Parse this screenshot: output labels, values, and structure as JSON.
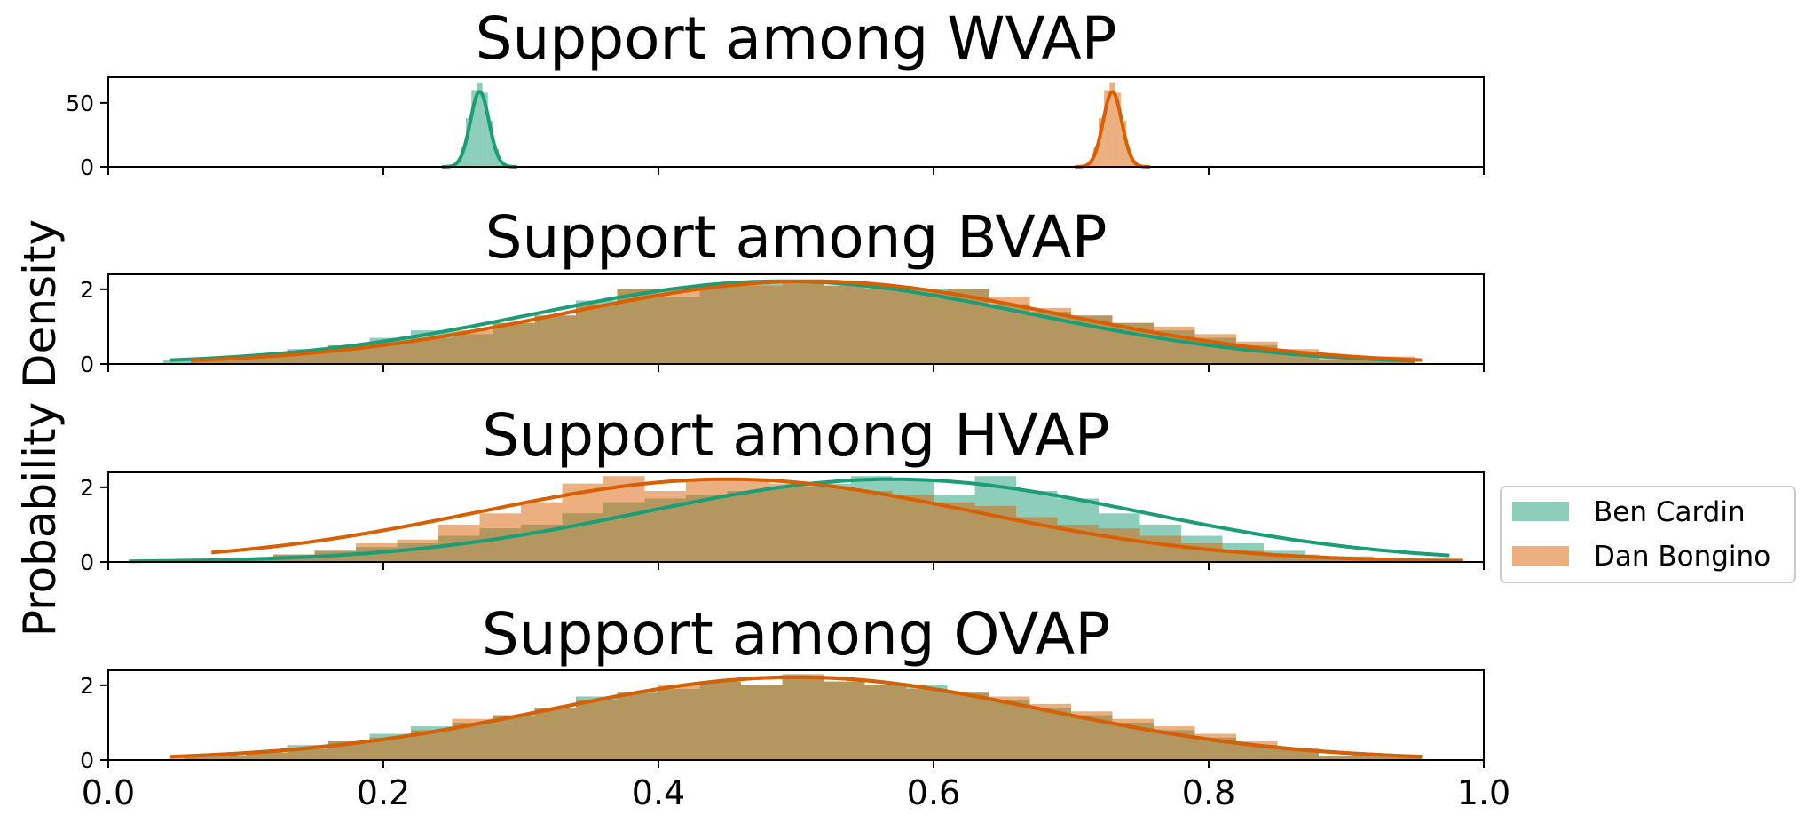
{
  "figure": {
    "ylabel": "Probability Density",
    "xticks": [
      "0.0",
      "0.2",
      "0.4",
      "0.6",
      "0.8",
      "1.0"
    ],
    "legend": [
      {
        "name": "Ben Cardin",
        "color": "#1b9e77"
      },
      {
        "name": "Dan Bongino",
        "color": "#d95f02"
      }
    ]
  },
  "chart_data": [
    {
      "type": "area",
      "title": "Support among WVAP",
      "xlim": [
        0.0,
        1.0
      ],
      "ylim": [
        0,
        70
      ],
      "yticks": [
        0,
        50
      ],
      "grid": false,
      "series": [
        {
          "name": "Ben Cardin",
          "color": "#1b9e77",
          "mean": 0.27,
          "sd": 0.0068,
          "hist": [
            [
              0.252,
              0.256,
              4
            ],
            [
              0.256,
              0.26,
              15
            ],
            [
              0.26,
              0.264,
              38
            ],
            [
              0.264,
              0.268,
              60
            ],
            [
              0.268,
              0.272,
              66
            ],
            [
              0.272,
              0.276,
              58
            ],
            [
              0.276,
              0.28,
              36
            ],
            [
              0.28,
              0.284,
              14
            ],
            [
              0.284,
              0.288,
              4
            ]
          ]
        },
        {
          "name": "Dan Bongino",
          "color": "#d95f02",
          "mean": 0.73,
          "sd": 0.0068,
          "hist": [
            [
              0.712,
              0.716,
              4
            ],
            [
              0.716,
              0.72,
              15
            ],
            [
              0.72,
              0.724,
              38
            ],
            [
              0.724,
              0.728,
              60
            ],
            [
              0.728,
              0.732,
              66
            ],
            [
              0.732,
              0.736,
              58
            ],
            [
              0.736,
              0.74,
              36
            ],
            [
              0.74,
              0.744,
              14
            ],
            [
              0.744,
              0.748,
              4
            ]
          ]
        }
      ]
    },
    {
      "type": "area",
      "title": "Support among BVAP",
      "xlim": [
        0.0,
        1.0
      ],
      "ylim": [
        0,
        2.4
      ],
      "yticks": [
        0,
        2
      ],
      "grid": false,
      "series": [
        {
          "name": "Ben Cardin",
          "color": "#1b9e77",
          "mean": 0.49,
          "sd": 0.18,
          "range": [
            0.045,
            0.95
          ],
          "hist": [
            [
              0.04,
              0.1,
              0.1
            ],
            [
              0.1,
              0.13,
              0.2
            ],
            [
              0.13,
              0.16,
              0.4
            ],
            [
              0.16,
              0.19,
              0.5
            ],
            [
              0.19,
              0.22,
              0.7
            ],
            [
              0.22,
              0.25,
              0.9
            ],
            [
              0.25,
              0.28,
              0.8
            ],
            [
              0.28,
              0.31,
              1.1
            ],
            [
              0.31,
              0.34,
              1.3
            ],
            [
              0.34,
              0.37,
              1.7
            ],
            [
              0.37,
              0.4,
              2.0
            ],
            [
              0.4,
              0.43,
              1.8
            ],
            [
              0.43,
              0.46,
              2.1
            ],
            [
              0.46,
              0.49,
              2.2
            ],
            [
              0.49,
              0.52,
              2.2
            ],
            [
              0.52,
              0.55,
              2.1
            ],
            [
              0.55,
              0.58,
              2.1
            ],
            [
              0.58,
              0.61,
              2.0
            ],
            [
              0.61,
              0.64,
              2.0
            ],
            [
              0.64,
              0.67,
              1.6
            ],
            [
              0.67,
              0.7,
              1.4
            ],
            [
              0.7,
              0.73,
              1.3
            ],
            [
              0.73,
              0.76,
              1.1
            ],
            [
              0.76,
              0.79,
              0.9
            ],
            [
              0.79,
              0.82,
              0.7
            ],
            [
              0.82,
              0.85,
              0.5
            ],
            [
              0.85,
              0.88,
              0.3
            ],
            [
              0.88,
              0.95,
              0.1
            ]
          ]
        },
        {
          "name": "Dan Bongino",
          "color": "#d95f02",
          "mean": 0.51,
          "sd": 0.18,
          "range": [
            0.06,
            0.955
          ],
          "hist": [
            [
              0.06,
              0.1,
              0.1
            ],
            [
              0.1,
              0.13,
              0.2
            ],
            [
              0.13,
              0.16,
              0.3
            ],
            [
              0.16,
              0.19,
              0.5
            ],
            [
              0.19,
              0.22,
              0.6
            ],
            [
              0.22,
              0.25,
              0.7
            ],
            [
              0.25,
              0.28,
              0.9
            ],
            [
              0.28,
              0.31,
              1.1
            ],
            [
              0.31,
              0.34,
              1.3
            ],
            [
              0.34,
              0.37,
              1.6
            ],
            [
              0.37,
              0.4,
              2.0
            ],
            [
              0.4,
              0.43,
              2.0
            ],
            [
              0.43,
              0.46,
              2.1
            ],
            [
              0.46,
              0.49,
              2.1
            ],
            [
              0.49,
              0.52,
              2.2
            ],
            [
              0.52,
              0.55,
              2.1
            ],
            [
              0.55,
              0.58,
              2.0
            ],
            [
              0.58,
              0.61,
              1.9
            ],
            [
              0.61,
              0.64,
              2.0
            ],
            [
              0.64,
              0.67,
              1.8
            ],
            [
              0.67,
              0.7,
              1.5
            ],
            [
              0.7,
              0.73,
              1.3
            ],
            [
              0.73,
              0.76,
              1.1
            ],
            [
              0.76,
              0.79,
              1.0
            ],
            [
              0.79,
              0.82,
              0.8
            ],
            [
              0.82,
              0.85,
              0.6
            ],
            [
              0.85,
              0.88,
              0.4
            ],
            [
              0.88,
              0.95,
              0.2
            ]
          ]
        }
      ]
    },
    {
      "type": "area",
      "title": "Support among HVAP",
      "xlim": [
        0.0,
        1.0
      ],
      "ylim": [
        0,
        2.4
      ],
      "yticks": [
        0,
        2
      ],
      "grid": false,
      "series": [
        {
          "name": "Ben Cardin",
          "color": "#1b9e77",
          "mean": 0.57,
          "sd": 0.18,
          "range": [
            0.015,
            0.975
          ],
          "hist": [
            [
              0.015,
              0.08,
              0.05
            ],
            [
              0.08,
              0.12,
              0.1
            ],
            [
              0.12,
              0.15,
              0.2
            ],
            [
              0.15,
              0.18,
              0.3
            ],
            [
              0.18,
              0.21,
              0.4
            ],
            [
              0.21,
              0.24,
              0.5
            ],
            [
              0.24,
              0.27,
              0.7
            ],
            [
              0.27,
              0.3,
              0.9
            ],
            [
              0.3,
              0.33,
              1.0
            ],
            [
              0.33,
              0.36,
              1.3
            ],
            [
              0.36,
              0.39,
              1.6
            ],
            [
              0.39,
              0.42,
              1.7
            ],
            [
              0.42,
              0.45,
              1.8
            ],
            [
              0.45,
              0.48,
              1.9
            ],
            [
              0.48,
              0.51,
              2.0
            ],
            [
              0.51,
              0.54,
              2.1
            ],
            [
              0.54,
              0.57,
              2.3
            ],
            [
              0.57,
              0.6,
              2.2
            ],
            [
              0.6,
              0.63,
              1.8
            ],
            [
              0.63,
              0.66,
              2.3
            ],
            [
              0.66,
              0.69,
              1.9
            ],
            [
              0.69,
              0.72,
              1.7
            ],
            [
              0.72,
              0.75,
              1.3
            ],
            [
              0.75,
              0.78,
              1.0
            ],
            [
              0.78,
              0.81,
              0.7
            ],
            [
              0.81,
              0.84,
              0.5
            ],
            [
              0.84,
              0.87,
              0.3
            ],
            [
              0.87,
              0.92,
              0.15
            ],
            [
              0.92,
              0.975,
              0.05
            ]
          ]
        },
        {
          "name": "Dan Bongino",
          "color": "#d95f02",
          "mean": 0.45,
          "sd": 0.18,
          "range": [
            0.075,
            0.985
          ],
          "hist": [
            [
              0.075,
              0.12,
              0.1
            ],
            [
              0.12,
              0.15,
              0.2
            ],
            [
              0.15,
              0.18,
              0.3
            ],
            [
              0.18,
              0.21,
              0.5
            ],
            [
              0.21,
              0.24,
              0.6
            ],
            [
              0.24,
              0.27,
              1.0
            ],
            [
              0.27,
              0.3,
              1.3
            ],
            [
              0.3,
              0.33,
              1.6
            ],
            [
              0.33,
              0.36,
              2.1
            ],
            [
              0.36,
              0.39,
              2.3
            ],
            [
              0.39,
              0.42,
              1.9
            ],
            [
              0.42,
              0.45,
              2.2
            ],
            [
              0.45,
              0.48,
              2.2
            ],
            [
              0.48,
              0.51,
              2.1
            ],
            [
              0.51,
              0.54,
              2.0
            ],
            [
              0.54,
              0.57,
              1.9
            ],
            [
              0.57,
              0.6,
              1.8
            ],
            [
              0.6,
              0.63,
              1.6
            ],
            [
              0.63,
              0.66,
              1.5
            ],
            [
              0.66,
              0.69,
              1.2
            ],
            [
              0.69,
              0.72,
              1.0
            ],
            [
              0.72,
              0.75,
              0.9
            ],
            [
              0.75,
              0.78,
              0.7
            ],
            [
              0.78,
              0.81,
              0.5
            ],
            [
              0.81,
              0.84,
              0.3
            ],
            [
              0.84,
              0.88,
              0.2
            ],
            [
              0.88,
              0.985,
              0.1
            ]
          ]
        }
      ]
    },
    {
      "type": "area",
      "title": "Support among OVAP",
      "xlim": [
        0.0,
        1.0
      ],
      "ylim": [
        0,
        2.4
      ],
      "yticks": [
        0,
        2
      ],
      "grid": false,
      "series": [
        {
          "name": "Ben Cardin",
          "color": "#1b9e77",
          "mean": 0.5,
          "sd": 0.18,
          "range": [
            0.055,
            0.955
          ],
          "hist": [
            [
              0.055,
              0.1,
              0.1
            ],
            [
              0.1,
              0.13,
              0.2
            ],
            [
              0.13,
              0.16,
              0.4
            ],
            [
              0.16,
              0.19,
              0.5
            ],
            [
              0.19,
              0.22,
              0.7
            ],
            [
              0.22,
              0.25,
              0.9
            ],
            [
              0.25,
              0.28,
              1.0
            ],
            [
              0.28,
              0.31,
              1.2
            ],
            [
              0.31,
              0.34,
              1.4
            ],
            [
              0.34,
              0.37,
              1.7
            ],
            [
              0.37,
              0.4,
              1.8
            ],
            [
              0.4,
              0.43,
              1.9
            ],
            [
              0.43,
              0.46,
              2.1
            ],
            [
              0.46,
              0.49,
              2.0
            ],
            [
              0.49,
              0.52,
              2.2
            ],
            [
              0.52,
              0.55,
              2.1
            ],
            [
              0.55,
              0.58,
              2.0
            ],
            [
              0.58,
              0.61,
              2.0
            ],
            [
              0.61,
              0.64,
              1.8
            ],
            [
              0.64,
              0.67,
              1.6
            ],
            [
              0.67,
              0.7,
              1.4
            ],
            [
              0.7,
              0.73,
              1.2
            ],
            [
              0.73,
              0.76,
              1.0
            ],
            [
              0.76,
              0.79,
              0.8
            ],
            [
              0.79,
              0.82,
              0.6
            ],
            [
              0.82,
              0.85,
              0.4
            ],
            [
              0.85,
              0.88,
              0.3
            ],
            [
              0.88,
              0.955,
              0.1
            ]
          ]
        },
        {
          "name": "Dan Bongino",
          "color": "#d95f02",
          "mean": 0.5,
          "sd": 0.18,
          "range": [
            0.045,
            0.955
          ],
          "hist": [
            [
              0.045,
              0.1,
              0.1
            ],
            [
              0.1,
              0.13,
              0.2
            ],
            [
              0.13,
              0.16,
              0.3
            ],
            [
              0.16,
              0.19,
              0.5
            ],
            [
              0.19,
              0.22,
              0.6
            ],
            [
              0.22,
              0.25,
              0.8
            ],
            [
              0.25,
              0.28,
              1.1
            ],
            [
              0.28,
              0.31,
              1.2
            ],
            [
              0.31,
              0.34,
              1.4
            ],
            [
              0.34,
              0.37,
              1.6
            ],
            [
              0.37,
              0.4,
              1.8
            ],
            [
              0.4,
              0.43,
              2.0
            ],
            [
              0.43,
              0.46,
              2.1
            ],
            [
              0.46,
              0.49,
              2.0
            ],
            [
              0.49,
              0.52,
              2.3
            ],
            [
              0.52,
              0.55,
              2.1
            ],
            [
              0.55,
              0.58,
              2.0
            ],
            [
              0.58,
              0.61,
              1.9
            ],
            [
              0.61,
              0.64,
              1.8
            ],
            [
              0.64,
              0.67,
              1.7
            ],
            [
              0.67,
              0.7,
              1.5
            ],
            [
              0.7,
              0.73,
              1.3
            ],
            [
              0.73,
              0.76,
              1.1
            ],
            [
              0.76,
              0.79,
              0.9
            ],
            [
              0.79,
              0.82,
              0.7
            ],
            [
              0.82,
              0.85,
              0.5
            ],
            [
              0.85,
              0.88,
              0.3
            ],
            [
              0.88,
              0.955,
              0.1
            ]
          ]
        }
      ]
    }
  ]
}
